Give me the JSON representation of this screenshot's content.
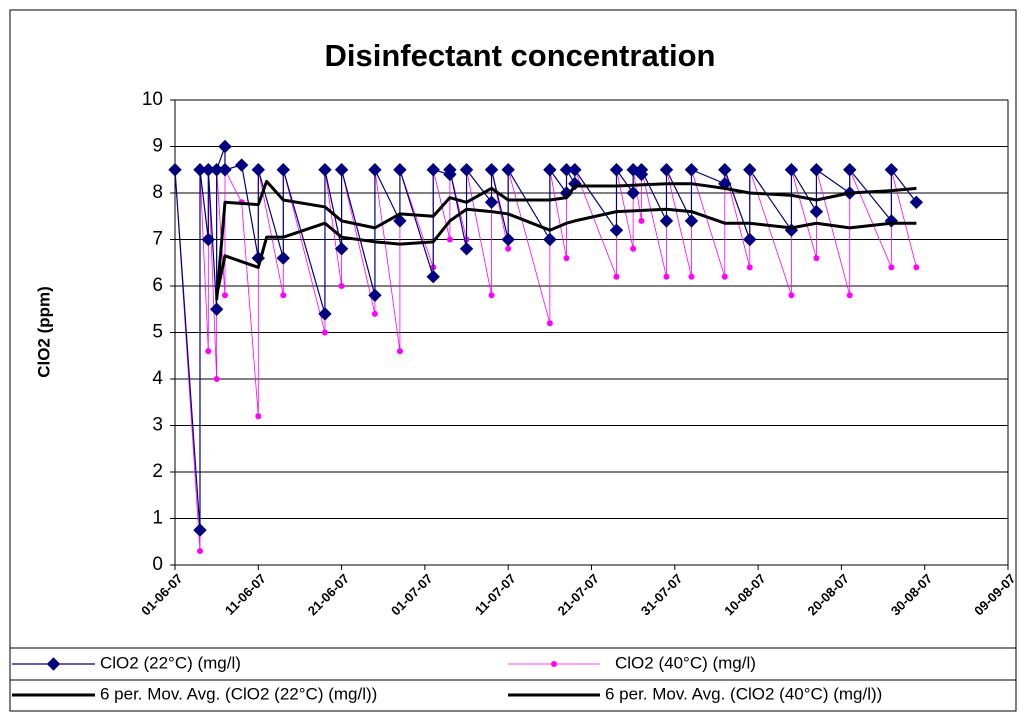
{
  "chart_data": {
    "type": "line",
    "title": "Disinfectant concentration",
    "y_label": "ClO2 (ppm)",
    "xlim": [
      "01-06-07",
      "09-09-07"
    ],
    "xticks": [
      "01-06-07",
      "11-06-07",
      "21-06-07",
      "01-07-07",
      "11-07-07",
      "21-07-07",
      "31-07-07",
      "10-08-07",
      "20-08-07",
      "30-08-07",
      "09-09-07"
    ],
    "ylim": [
      0,
      10
    ],
    "yticks": [
      0,
      1,
      2,
      3,
      4,
      5,
      6,
      7,
      8,
      9,
      10
    ],
    "grid": true,
    "legend": "bottom",
    "series": [
      {
        "name": "ClO2 (22°C) (mg/l)",
        "color": "#000080",
        "marker": "diamond",
        "x": [
          "01-06-07",
          "04-06-07",
          "04-06-07",
          "05-06-07",
          "05-06-07",
          "06-06-07",
          "06-06-07",
          "07-06-07",
          "07-06-07",
          "09-06-07",
          "11-06-07",
          "11-06-07",
          "14-06-07",
          "14-06-07",
          "19-06-07",
          "19-06-07",
          "21-06-07",
          "21-06-07",
          "25-06-07",
          "25-06-07",
          "28-06-07",
          "28-06-07",
          "02-07-07",
          "02-07-07",
          "04-07-07",
          "04-07-07",
          "06-07-07",
          "06-07-07",
          "09-07-07",
          "09-07-07",
          "11-07-07",
          "11-07-07",
          "16-07-07",
          "16-07-07",
          "18-07-07",
          "18-07-07",
          "19-07-07",
          "19-07-07",
          "24-07-07",
          "24-07-07",
          "26-07-07",
          "26-07-07",
          "27-07-07",
          "27-07-07",
          "30-07-07",
          "30-07-07",
          "02-08-07",
          "02-08-07",
          "06-08-07",
          "06-08-07",
          "09-08-07",
          "09-08-07",
          "14-08-07",
          "14-08-07",
          "17-08-07",
          "17-08-07",
          "21-08-07",
          "21-08-07",
          "26-08-07",
          "26-08-07",
          "29-08-07"
        ],
        "values": [
          8.5,
          0.75,
          8.5,
          7.0,
          8.5,
          5.5,
          8.5,
          9.0,
          8.5,
          8.6,
          6.6,
          8.5,
          6.6,
          8.5,
          5.4,
          8.5,
          6.8,
          8.5,
          5.8,
          8.5,
          7.4,
          8.5,
          6.2,
          8.5,
          8.4,
          8.5,
          6.8,
          8.5,
          7.8,
          8.5,
          7.0,
          8.5,
          7.0,
          8.5,
          8.0,
          8.5,
          8.2,
          8.5,
          7.2,
          8.5,
          8.0,
          8.5,
          8.4,
          8.5,
          7.4,
          8.5,
          7.4,
          8.5,
          8.2,
          8.5,
          7.0,
          8.5,
          7.2,
          8.5,
          7.6,
          8.5,
          8.0,
          8.5,
          7.4,
          8.5,
          7.8
        ]
      },
      {
        "name": "ClO2 (40°C) (mg/l)",
        "color": "#ff00ff",
        "marker": "circle",
        "x": [
          "01-06-07",
          "04-06-07",
          "04-06-07",
          "05-06-07",
          "05-06-07",
          "06-06-07",
          "06-06-07",
          "07-06-07",
          "07-06-07",
          "09-06-07",
          "11-06-07",
          "11-06-07",
          "14-06-07",
          "14-06-07",
          "19-06-07",
          "19-06-07",
          "21-06-07",
          "21-06-07",
          "25-06-07",
          "25-06-07",
          "28-06-07",
          "28-06-07",
          "02-07-07",
          "02-07-07",
          "04-07-07",
          "04-07-07",
          "06-07-07",
          "06-07-07",
          "09-07-07",
          "09-07-07",
          "11-07-07",
          "11-07-07",
          "16-07-07",
          "16-07-07",
          "18-07-07",
          "18-07-07",
          "19-07-07",
          "19-07-07",
          "24-07-07",
          "24-07-07",
          "26-07-07",
          "26-07-07",
          "27-07-07",
          "27-07-07",
          "30-07-07",
          "30-07-07",
          "02-08-07",
          "02-08-07",
          "06-08-07",
          "06-08-07",
          "09-08-07",
          "09-08-07",
          "14-08-07",
          "14-08-07",
          "17-08-07",
          "17-08-07",
          "21-08-07",
          "21-08-07",
          "26-08-07",
          "26-08-07",
          "29-08-07"
        ],
        "values": [
          8.5,
          0.3,
          8.5,
          4.6,
          8.5,
          4.0,
          8.5,
          5.8,
          8.5,
          7.8,
          3.2,
          8.5,
          5.8,
          8.5,
          5.0,
          8.5,
          6.0,
          8.5,
          5.4,
          8.5,
          4.6,
          8.5,
          6.4,
          8.5,
          7.0,
          8.5,
          7.0,
          8.5,
          5.8,
          8.5,
          6.8,
          8.5,
          5.2,
          8.5,
          6.6,
          8.5,
          8.5,
          8.5,
          6.2,
          8.5,
          6.8,
          8.5,
          7.4,
          8.5,
          6.2,
          8.5,
          6.2,
          8.5,
          6.2,
          8.5,
          6.4,
          8.5,
          5.8,
          8.5,
          6.6,
          8.5,
          5.8,
          8.5,
          6.4,
          8.5,
          6.4
        ]
      },
      {
        "name": "6 per. Mov. Avg. (ClO2 (22°C) (mg/l))",
        "color": "#000000",
        "marker": null,
        "x": [
          "06-06-07",
          "07-06-07",
          "11-06-07",
          "12-06-07",
          "14-06-07",
          "19-06-07",
          "21-06-07",
          "25-06-07",
          "28-06-07",
          "02-07-07",
          "04-07-07",
          "06-07-07",
          "09-07-07",
          "11-07-07",
          "16-07-07",
          "18-07-07",
          "19-07-07",
          "24-07-07",
          "30-07-07",
          "02-08-07",
          "06-08-07",
          "09-08-07",
          "14-08-07",
          "17-08-07",
          "21-08-07",
          "26-08-07",
          "29-08-07"
        ],
        "values": [
          5.7,
          7.8,
          7.75,
          8.25,
          7.85,
          7.7,
          7.4,
          7.25,
          7.55,
          7.5,
          7.9,
          7.8,
          8.1,
          7.85,
          7.85,
          7.9,
          8.15,
          8.15,
          8.2,
          8.2,
          8.1,
          8.0,
          7.95,
          7.85,
          8.0,
          8.05,
          8.1
        ]
      },
      {
        "name": "6 per. Mov. Avg. (ClO2 (40°C) (mg/l))",
        "color": "#000000",
        "marker": null,
        "x": [
          "06-06-07",
          "07-06-07",
          "11-06-07",
          "12-06-07",
          "14-06-07",
          "19-06-07",
          "21-06-07",
          "25-06-07",
          "28-06-07",
          "02-07-07",
          "04-07-07",
          "06-07-07",
          "09-07-07",
          "11-07-07",
          "16-07-07",
          "18-07-07",
          "19-07-07",
          "24-07-07",
          "30-07-07",
          "02-08-07",
          "06-08-07",
          "09-08-07",
          "14-08-07",
          "17-08-07",
          "21-08-07",
          "26-08-07",
          "29-08-07"
        ],
        "values": [
          5.8,
          6.65,
          6.4,
          7.05,
          7.05,
          7.35,
          7.05,
          6.95,
          6.9,
          6.95,
          7.4,
          7.65,
          7.6,
          7.55,
          7.2,
          7.35,
          7.4,
          7.6,
          7.65,
          7.6,
          7.35,
          7.35,
          7.25,
          7.35,
          7.25,
          7.35,
          7.35
        ]
      }
    ]
  }
}
